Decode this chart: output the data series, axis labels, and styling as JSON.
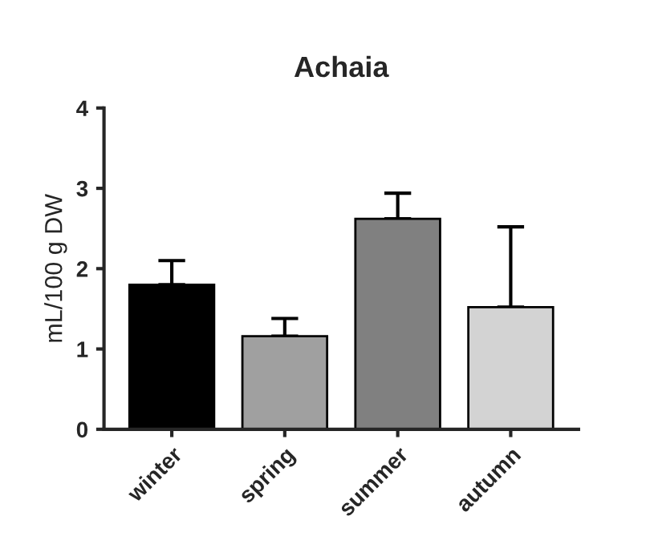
{
  "chart_data": {
    "type": "bar",
    "title": "Achaia",
    "ylabel": "mL/100 g DW",
    "categories": [
      "winter",
      "spring",
      "summer",
      "autumn"
    ],
    "values": [
      1.8,
      1.16,
      2.62,
      1.52
    ],
    "errors": [
      [
        1.8,
        2.1
      ],
      [
        1.16,
        1.38
      ],
      [
        2.62,
        2.94
      ],
      [
        1.52,
        2.52
      ]
    ],
    "colors": [
      "#000000",
      "#a0a0a0",
      "#808080",
      "#d3d3d3"
    ],
    "ylim": [
      0,
      4
    ],
    "yticks": [
      0,
      1,
      2,
      3,
      4
    ],
    "grid": false
  }
}
